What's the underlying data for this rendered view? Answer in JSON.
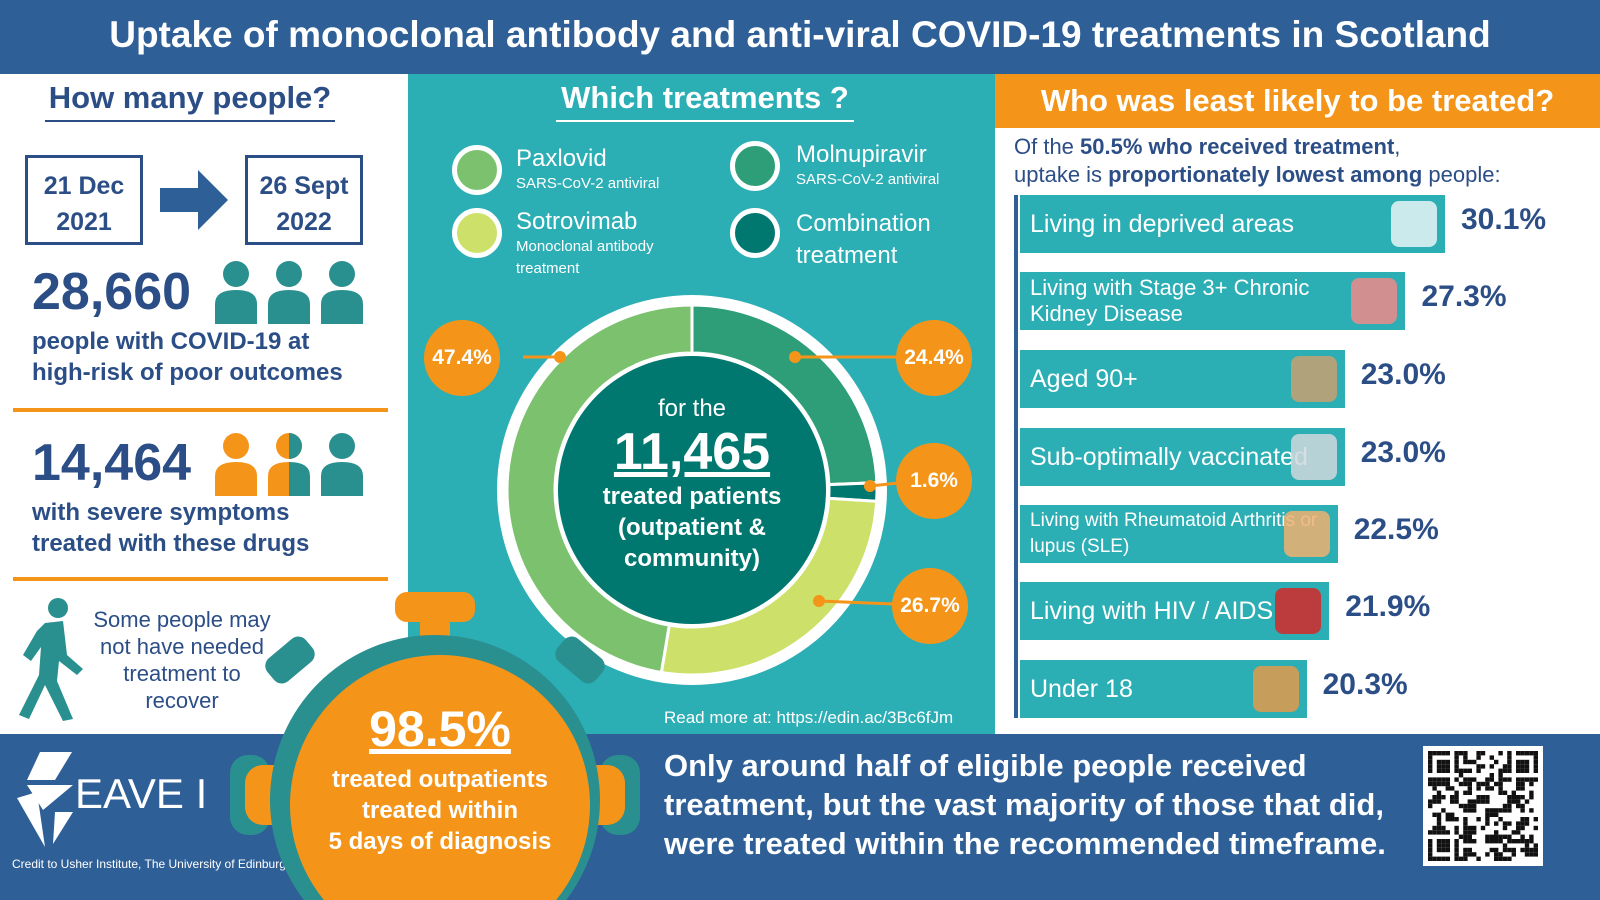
{
  "title": "Uptake of monoclonal antibody and anti-viral COVID-19 treatments in Scotland",
  "left": {
    "heading": "How many people?",
    "date_from": [
      "21 Dec",
      "2021"
    ],
    "date_to": [
      "26 Sept",
      "2022"
    ],
    "eligible_count": "28,660",
    "eligible_desc": [
      "people with COVID-19 at",
      "high-risk of poor outcomes"
    ],
    "severe_count": "14,464",
    "severe_desc": [
      "with severe symptoms",
      "treated with these drugs"
    ],
    "note": [
      "Some people may",
      "not have needed",
      "treatment to",
      "recover"
    ]
  },
  "middle": {
    "heading": "Which treatments ?",
    "legend": [
      {
        "name": "Paxlovid",
        "sub": "SARS-CoV-2 antiviral",
        "color": "#7cc26e"
      },
      {
        "name": "Molnupiravir",
        "sub": "SARS-CoV-2 antiviral",
        "color": "#2e9e78"
      },
      {
        "name": "Sotrovimab",
        "sub": "Monoclonal antibody treatment",
        "color": "#cde06a"
      },
      {
        "name": "Combination",
        "sub": "treatment",
        "color": "#00786f"
      }
    ],
    "center": {
      "pre": "for the",
      "count": "11,465",
      "lines": [
        "treated patients",
        "(outpatient &",
        "community)"
      ]
    },
    "labels": {
      "paxlovid": "47.4%",
      "molnupiravir": "24.4%",
      "combination": "1.6%",
      "sotrovimab": "26.7%"
    },
    "read_more": "Read more at: https://edin.ac/3Bc6fJm"
  },
  "right": {
    "heading": "Who was least likely to be treated?",
    "intro": {
      "a": "Of the ",
      "b": "50.5% who received treatment",
      ",": ",",
      "c": "uptake is ",
      "d": "proportionately lowest among",
      "e": " people:"
    }
  },
  "stopwatch": {
    "value": "98.5%",
    "lines": [
      "treated outpatients",
      "treated within",
      "5 days of diagnosis"
    ]
  },
  "footer": {
    "logo": "EAVE II",
    "credit": "Credit to Usher Institute, The University of Edinburgh",
    "message": [
      "Only around half of eligible people received",
      "treatment, but the vast majority of those that did,",
      "were treated within the recommended timeframe."
    ]
  },
  "chart_data": [
    {
      "type": "pie",
      "subtype": "donut",
      "categories": [
        "Molnupiravir",
        "Combination treatment",
        "Sotrovimab",
        "Paxlovid"
      ],
      "values": [
        24.4,
        1.6,
        26.7,
        47.4
      ],
      "colors": [
        "#2e9e78",
        "#00786f",
        "#cde06a",
        "#7cc26e"
      ]
    },
    {
      "type": "bar",
      "orientation": "horizontal",
      "categories": [
        "Living in deprived areas",
        "Living with Stage 3+ Chronic Kidney Disease",
        "Aged 90+",
        "Sub-optimally vaccinated",
        "Living with Rheumatoid Arthritis or lupus (SLE)",
        "Living with HIV / AIDS",
        "Under 18"
      ],
      "values": [
        30.1,
        27.3,
        23.0,
        23.0,
        22.5,
        21.9,
        20.3
      ],
      "labels": [
        "30.1%",
        "27.3%",
        "23.0%",
        "23.0%",
        "22.5%",
        "21.9%",
        "20.3%"
      ],
      "icons": [
        "city-icon",
        "kidney-icon",
        "elderly-people-icon",
        "syringe-icon",
        "hand-joint-icon",
        "red-ribbon-icon",
        "children-icon"
      ],
      "color": "#2caeb5"
    }
  ]
}
